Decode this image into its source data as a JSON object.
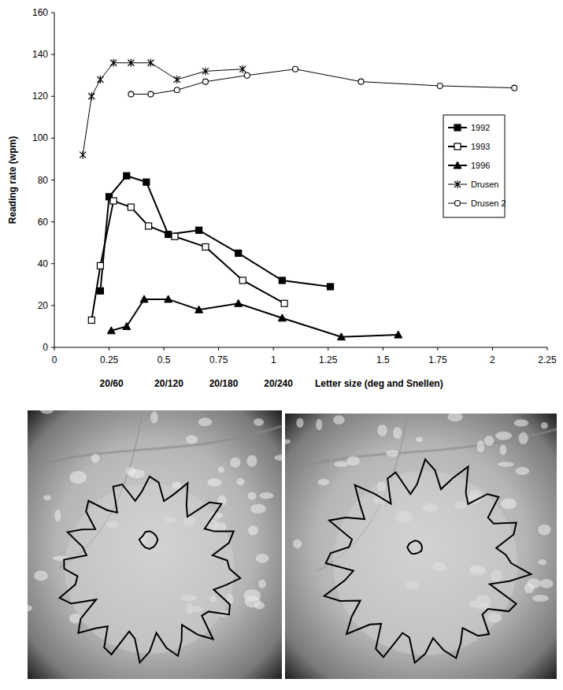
{
  "chart_data": {
    "type": "line",
    "y_label": "Reading rate (wpm)",
    "x_label": "Letter size (deg and Snellen)",
    "xlim": [
      0,
      2.25
    ],
    "xticks": [
      0,
      0.25,
      {
        "value": 0.5,
        "label": "0.5"
      },
      0.75,
      1,
      1.25,
      {
        "value": 1.5,
        "label": "1.5"
      },
      1.75,
      2,
      2.25
    ],
    "ylim": [
      0,
      160
    ],
    "yticks": [
      0,
      20,
      40,
      60,
      80,
      100,
      120,
      140,
      160
    ],
    "grid": false,
    "legend": "right",
    "annotations": [
      {
        "text": "20/60",
        "x": 0.25
      },
      {
        "text": "20/120",
        "x": 0.5
      },
      {
        "text": "20/180",
        "x": 0.75
      },
      {
        "text": "20/240",
        "x": 1
      }
    ],
    "series": [
      {
        "name": "1992",
        "color": "#000000",
        "marker": "square",
        "line_style": "thick",
        "x": [
          0.21,
          0.25,
          0.33,
          0.42,
          0.52,
          0.66,
          0.84,
          1.04,
          1.26
        ],
        "values": [
          27,
          72,
          82,
          79,
          54,
          56,
          45,
          32,
          29
        ]
      },
      {
        "name": "1993",
        "color": "#000000",
        "marker": "square-open",
        "line_style": "thick",
        "x": [
          0.17,
          0.21,
          0.27,
          0.35,
          0.43,
          0.55,
          0.69,
          0.86,
          1.05
        ],
        "values": [
          13,
          39,
          70,
          67,
          58,
          53,
          48,
          32,
          21
        ]
      },
      {
        "name": "1996",
        "color": "#000000",
        "marker": "triangle",
        "line_style": "thick",
        "x": [
          0.26,
          0.33,
          0.41,
          0.52,
          0.66,
          0.84,
          1.04,
          1.31,
          1.57
        ],
        "values": [
          8,
          10,
          23,
          23,
          18,
          21,
          14,
          5,
          6
        ]
      },
      {
        "name": "Drusen",
        "color": "#000000",
        "marker": "asterisk",
        "line_style": "thin",
        "x": [
          0.13,
          0.17,
          0.21,
          0.27,
          0.35,
          0.44,
          0.56,
          0.69,
          0.86
        ],
        "values": [
          92,
          120,
          128,
          136,
          136,
          136,
          128,
          132,
          133
        ]
      },
      {
        "name": "Drusen 2",
        "color": "#000000",
        "marker": "circle-open",
        "line_style": "thin",
        "x": [
          0.35,
          0.44,
          0.56,
          0.69,
          0.88,
          1.1,
          1.4,
          1.76,
          2.1
        ],
        "values": [
          121,
          121,
          123,
          127,
          130,
          133,
          127,
          125,
          124
        ]
      }
    ]
  }
}
